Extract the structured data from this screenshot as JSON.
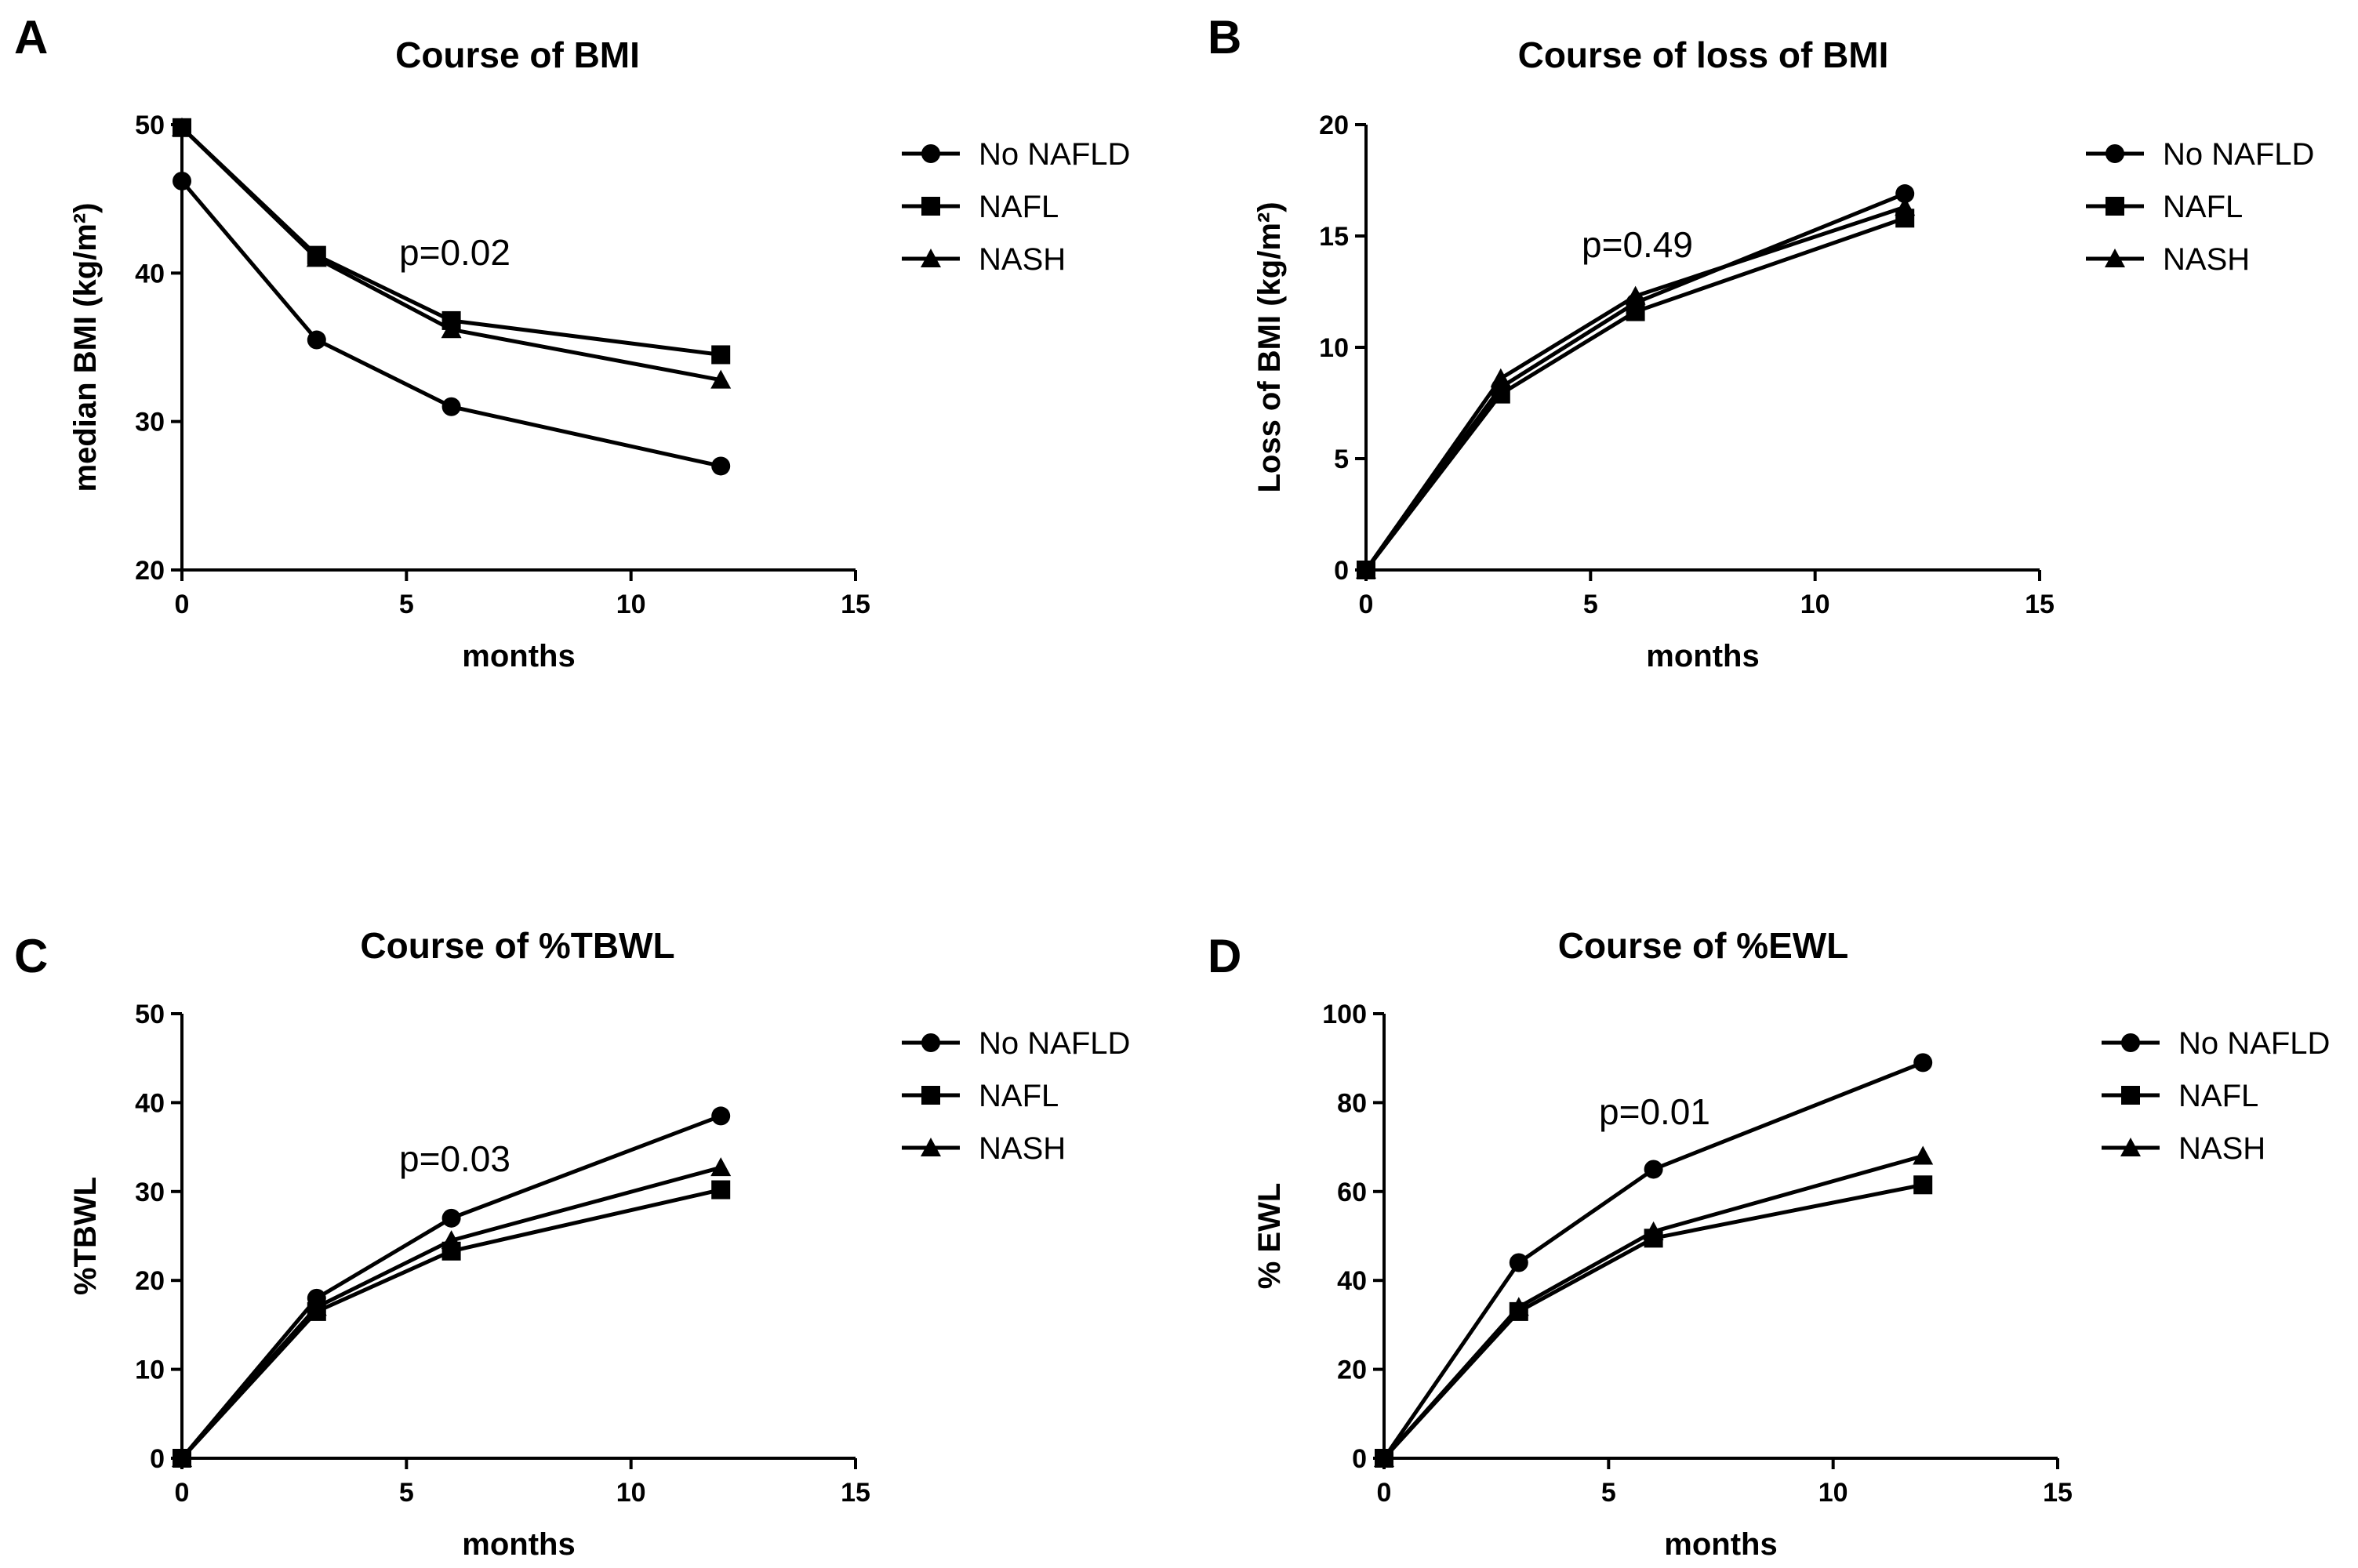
{
  "chart_data": [
    {
      "panel": "A",
      "type": "line",
      "title": "Course of BMI",
      "xlabel": "months",
      "ylabel": "median BMI (kg/m²)",
      "xlim": [
        0,
        15
      ],
      "ylim": [
        20,
        50
      ],
      "xticks": [
        "0",
        "5",
        "10",
        "15"
      ],
      "yticks": [
        "20",
        "30",
        "40",
        "50"
      ],
      "annotation": "p=0.02",
      "x": [
        0,
        3,
        6,
        12
      ],
      "series": [
        {
          "name": "No NAFLD",
          "marker": "circle",
          "values": [
            46.2,
            35.5,
            31.0,
            27.0
          ]
        },
        {
          "name": "NAFL",
          "marker": "square",
          "values": [
            49.8,
            41.2,
            36.8,
            34.5
          ]
        },
        {
          "name": "NASH",
          "marker": "triangle",
          "values": [
            49.8,
            41.0,
            36.2,
            32.8
          ]
        }
      ],
      "legend": "right",
      "grid": false
    },
    {
      "panel": "B",
      "type": "line",
      "title": "Course of loss of BMI",
      "xlabel": "months",
      "ylabel": "Loss of BMI (kg/m²)",
      "xlim": [
        0,
        15
      ],
      "ylim": [
        0,
        20
      ],
      "xticks": [
        "0",
        "5",
        "10",
        "15"
      ],
      "yticks": [
        "0",
        "5",
        "10",
        "15",
        "20"
      ],
      "annotation": "p=0.49",
      "x": [
        0,
        3,
        6,
        12
      ],
      "series": [
        {
          "name": "No NAFLD",
          "marker": "circle",
          "values": [
            0,
            8.2,
            12.0,
            16.9
          ]
        },
        {
          "name": "NAFL",
          "marker": "square",
          "values": [
            0,
            7.9,
            11.6,
            15.8
          ]
        },
        {
          "name": "NASH",
          "marker": "triangle",
          "values": [
            0,
            8.6,
            12.3,
            16.3
          ]
        }
      ],
      "legend": "right",
      "grid": false
    },
    {
      "panel": "C",
      "type": "line",
      "title": "Course of %TBWL",
      "xlabel": "months",
      "ylabel": "%TBWL",
      "xlim": [
        0,
        15
      ],
      "ylim": [
        0,
        50
      ],
      "xticks": [
        "0",
        "5",
        "10",
        "15"
      ],
      "yticks": [
        "0",
        "10",
        "20",
        "30",
        "40",
        "50"
      ],
      "annotation": "p=0.03",
      "x": [
        0,
        3,
        6,
        12
      ],
      "series": [
        {
          "name": "No NAFLD",
          "marker": "circle",
          "values": [
            0,
            18.0,
            27.0,
            38.5
          ]
        },
        {
          "name": "NAFL",
          "marker": "square",
          "values": [
            0,
            16.5,
            23.3,
            30.2
          ]
        },
        {
          "name": "NASH",
          "marker": "triangle",
          "values": [
            0,
            17.0,
            24.5,
            32.7
          ]
        }
      ],
      "legend": "right",
      "grid": false
    },
    {
      "panel": "D",
      "type": "line",
      "title": "Course of %EWL",
      "xlabel": "months",
      "ylabel": "% EWL",
      "xlim": [
        0,
        15
      ],
      "ylim": [
        0,
        100
      ],
      "xticks": [
        "0",
        "5",
        "10",
        "15"
      ],
      "yticks": [
        "0",
        "20",
        "40",
        "60",
        "80",
        "100"
      ],
      "annotation": "p=0.01",
      "x": [
        0,
        3,
        6,
        12
      ],
      "series": [
        {
          "name": "No NAFLD",
          "marker": "circle",
          "values": [
            0,
            44.0,
            65.0,
            89.0
          ]
        },
        {
          "name": "NAFL",
          "marker": "square",
          "values": [
            0,
            33.0,
            49.5,
            61.5
          ]
        },
        {
          "name": "NASH",
          "marker": "triangle",
          "values": [
            0,
            34.0,
            51.0,
            68.0
          ]
        }
      ],
      "legend": "right",
      "grid": false
    }
  ]
}
